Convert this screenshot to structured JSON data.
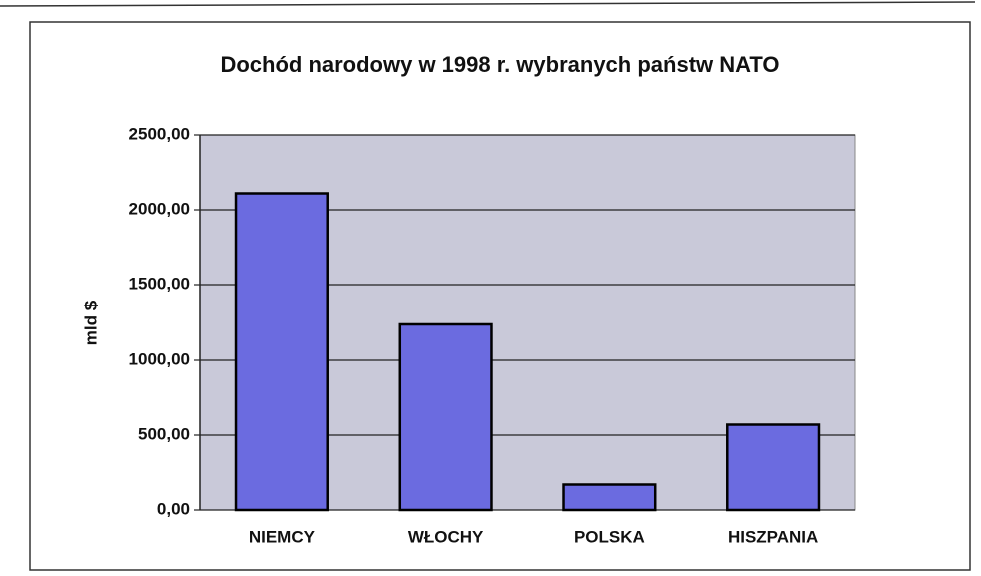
{
  "chart_data": {
    "type": "bar",
    "title": "Dochód narodowy w 1998 r. wybranych państw NATO",
    "y_label": "mld $",
    "categories": [
      "NIEMCY",
      "WŁOCHY",
      "POLSKA",
      "HISZPANIA"
    ],
    "values": [
      2110,
      1240,
      170,
      570
    ],
    "color": "#6b6be0",
    "ylim": [
      0,
      2500
    ],
    "yticks": [
      {
        "value": 0,
        "label": "0,00"
      },
      {
        "value": 500,
        "label": "500,00"
      },
      {
        "value": 1000,
        "label": "1000,00"
      },
      {
        "value": 1500,
        "label": "1500,00"
      },
      {
        "value": 2000,
        "label": "2000,00"
      },
      {
        "value": 2500,
        "label": "2500,00"
      }
    ],
    "grid": true
  }
}
